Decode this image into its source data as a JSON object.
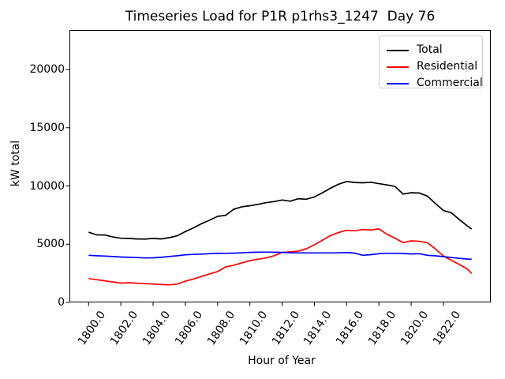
{
  "figure": {
    "title": "Timeseries Load for P1R p1rhs3_1247  Day 76",
    "xlabel": "Hour of Year",
    "ylabel": "kW total"
  },
  "chart_data": {
    "type": "line",
    "title": "Timeseries Load for P1R p1rhs3_1247  Day 76",
    "xlabel": "Hour of Year",
    "ylabel": "kW total",
    "xlim": [
      1798.8125,
      1824.9375
    ],
    "ylim": [
      0,
      23390
    ],
    "grid": false,
    "legend_position": "upper right",
    "xtick_labels": [
      "1800.0",
      "1802.0",
      "1804.0",
      "1806.0",
      "1808.0",
      "1810.0",
      "1812.0",
      "1814.0",
      "1816.0",
      "1818.0",
      "1820.0",
      "1822.0"
    ],
    "xtick_values": [
      1800,
      1802,
      1804,
      1806,
      1808,
      1810,
      1812,
      1814,
      1816,
      1818,
      1820,
      1822
    ],
    "ytick_labels": [
      "0",
      "5000",
      "10000",
      "15000",
      "20000"
    ],
    "ytick_values": [
      0,
      5000,
      10000,
      15000,
      20000
    ],
    "x": [
      1800.0,
      1800.5,
      1801.0,
      1801.5,
      1802.0,
      1802.5,
      1803.0,
      1803.5,
      1804.0,
      1804.5,
      1805.0,
      1805.5,
      1806.0,
      1806.5,
      1807.0,
      1807.5,
      1808.0,
      1808.5,
      1809.0,
      1809.5,
      1810.0,
      1810.5,
      1811.0,
      1811.5,
      1812.0,
      1812.5,
      1813.0,
      1813.5,
      1814.0,
      1814.5,
      1815.0,
      1815.5,
      1816.0,
      1816.5,
      1817.0,
      1817.5,
      1818.0,
      1818.5,
      1819.0,
      1819.5,
      1820.0,
      1820.5,
      1821.0,
      1821.5,
      1822.0,
      1822.5,
      1823.0,
      1823.5,
      1823.75
    ],
    "series": [
      {
        "name": "Total",
        "color": "#000000",
        "values": [
          6030,
          5800,
          5790,
          5620,
          5510,
          5490,
          5450,
          5440,
          5490,
          5450,
          5560,
          5720,
          6080,
          6400,
          6760,
          7060,
          7390,
          7480,
          8000,
          8210,
          8300,
          8420,
          8560,
          8660,
          8790,
          8690,
          8900,
          8860,
          9060,
          9420,
          9810,
          10150,
          10380,
          10300,
          10270,
          10320,
          10200,
          10090,
          9960,
          9300,
          9420,
          9400,
          9130,
          8500,
          7890,
          7690,
          7100,
          6550,
          6300
        ]
      },
      {
        "name": "Residential",
        "color": "#ff0000",
        "values": [
          2050,
          1950,
          1850,
          1760,
          1660,
          1690,
          1650,
          1610,
          1580,
          1530,
          1510,
          1570,
          1830,
          2010,
          2240,
          2450,
          2650,
          3050,
          3190,
          3400,
          3590,
          3710,
          3820,
          4010,
          4290,
          4350,
          4400,
          4610,
          4950,
          5350,
          5740,
          6010,
          6190,
          6150,
          6260,
          6210,
          6310,
          5850,
          5510,
          5130,
          5290,
          5250,
          5130,
          4600,
          3980,
          3600,
          3250,
          2850,
          2480
        ]
      },
      {
        "name": "Commercial",
        "color": "#0000ff",
        "values": [
          4050,
          4010,
          3980,
          3940,
          3900,
          3870,
          3850,
          3820,
          3830,
          3870,
          3940,
          4010,
          4090,
          4120,
          4150,
          4180,
          4210,
          4220,
          4230,
          4260,
          4300,
          4310,
          4320,
          4310,
          4300,
          4260,
          4250,
          4250,
          4250,
          4250,
          4250,
          4260,
          4280,
          4230,
          4050,
          4100,
          4180,
          4220,
          4220,
          4200,
          4160,
          4180,
          4050,
          4000,
          3930,
          3850,
          3780,
          3720,
          3700
        ]
      }
    ]
  }
}
